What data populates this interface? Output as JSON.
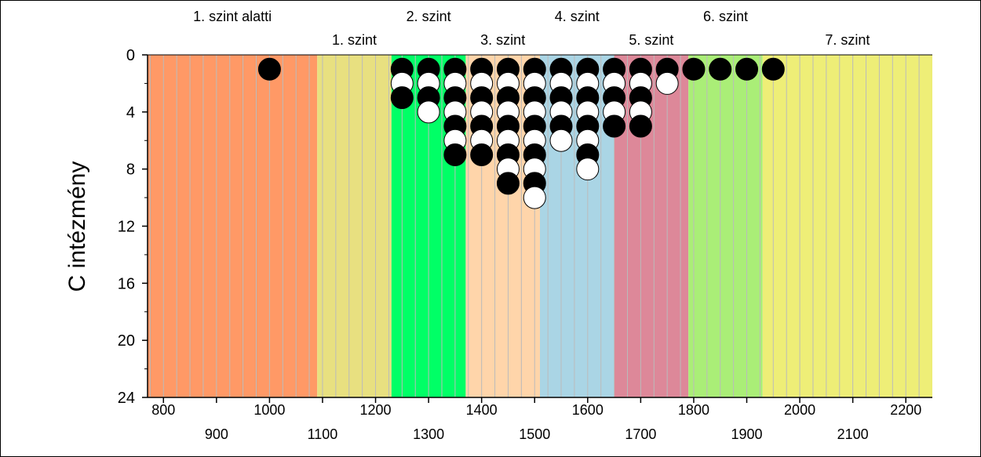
{
  "chart_data": {
    "type": "scatter",
    "ylabel": "C intézmény",
    "xlim": [
      770,
      2250
    ],
    "ylim": [
      0,
      24
    ],
    "y_reversed": true,
    "grid": true,
    "y_ticks": [
      0,
      4,
      8,
      12,
      16,
      20,
      24
    ],
    "x_ticks_upper": [
      800,
      1000,
      1200,
      1400,
      1600,
      1800,
      2000,
      2200
    ],
    "x_ticks_lower": [
      900,
      1100,
      1300,
      1500,
      1700,
      1900,
      2100
    ],
    "bands": [
      {
        "label": "1. szint alatti",
        "from": 770,
        "to": 1090,
        "color": "#FF9966",
        "label_row": "upper"
      },
      {
        "label": "1. szint",
        "from": 1090,
        "to": 1230,
        "color": "#E8E080",
        "label_row": "lower"
      },
      {
        "label": "2. szint",
        "from": 1230,
        "to": 1370,
        "color": "#00FF66",
        "label_row": "upper"
      },
      {
        "label": "3. szint",
        "from": 1370,
        "to": 1510,
        "color": "#FFD5AA",
        "label_row": "lower"
      },
      {
        "label": "4. szint",
        "from": 1510,
        "to": 1650,
        "color": "#AAD5E5",
        "label_row": "upper"
      },
      {
        "label": "5. szint",
        "from": 1650,
        "to": 1790,
        "color": "#DD8899",
        "label_row": "lower"
      },
      {
        "label": "6. szint",
        "from": 1790,
        "to": 1930,
        "color": "#AAEE77",
        "label_row": "upper"
      },
      {
        "label": "7. szint",
        "from": 1930,
        "to": 2250,
        "color": "#EEEE77",
        "label_row": "lower"
      }
    ],
    "columns": [
      {
        "x": 1000,
        "values": [
          "black"
        ]
      },
      {
        "x": 1250,
        "values": [
          "black",
          "white",
          "black"
        ]
      },
      {
        "x": 1300,
        "values": [
          "black",
          "white",
          "black",
          "white"
        ]
      },
      {
        "x": 1350,
        "values": [
          "black",
          "white",
          "black",
          "white",
          "black",
          "white",
          "black"
        ]
      },
      {
        "x": 1400,
        "values": [
          "black",
          "white",
          "black",
          "white",
          "black",
          "white",
          "black"
        ]
      },
      {
        "x": 1450,
        "values": [
          "black",
          "white",
          "black",
          "white",
          "black",
          "white",
          "black",
          "white",
          "black"
        ]
      },
      {
        "x": 1500,
        "values": [
          "black",
          "white",
          "black",
          "white",
          "black",
          "white",
          "black",
          "white",
          "black",
          "white"
        ]
      },
      {
        "x": 1550,
        "values": [
          "black",
          "white",
          "black",
          "white",
          "black",
          "white"
        ]
      },
      {
        "x": 1600,
        "values": [
          "black",
          "white",
          "black",
          "white",
          "black",
          "white",
          "black",
          "white"
        ]
      },
      {
        "x": 1650,
        "values": [
          "black",
          "white",
          "black",
          "white",
          "black"
        ]
      },
      {
        "x": 1700,
        "values": [
          "black",
          "white",
          "black",
          "white",
          "black"
        ]
      },
      {
        "x": 1750,
        "values": [
          "black",
          "white"
        ]
      },
      {
        "x": 1800,
        "values": [
          "black"
        ]
      },
      {
        "x": 1850,
        "values": [
          "black"
        ]
      },
      {
        "x": 1900,
        "values": [
          "black"
        ]
      },
      {
        "x": 1950,
        "values": [
          "black"
        ]
      }
    ]
  }
}
